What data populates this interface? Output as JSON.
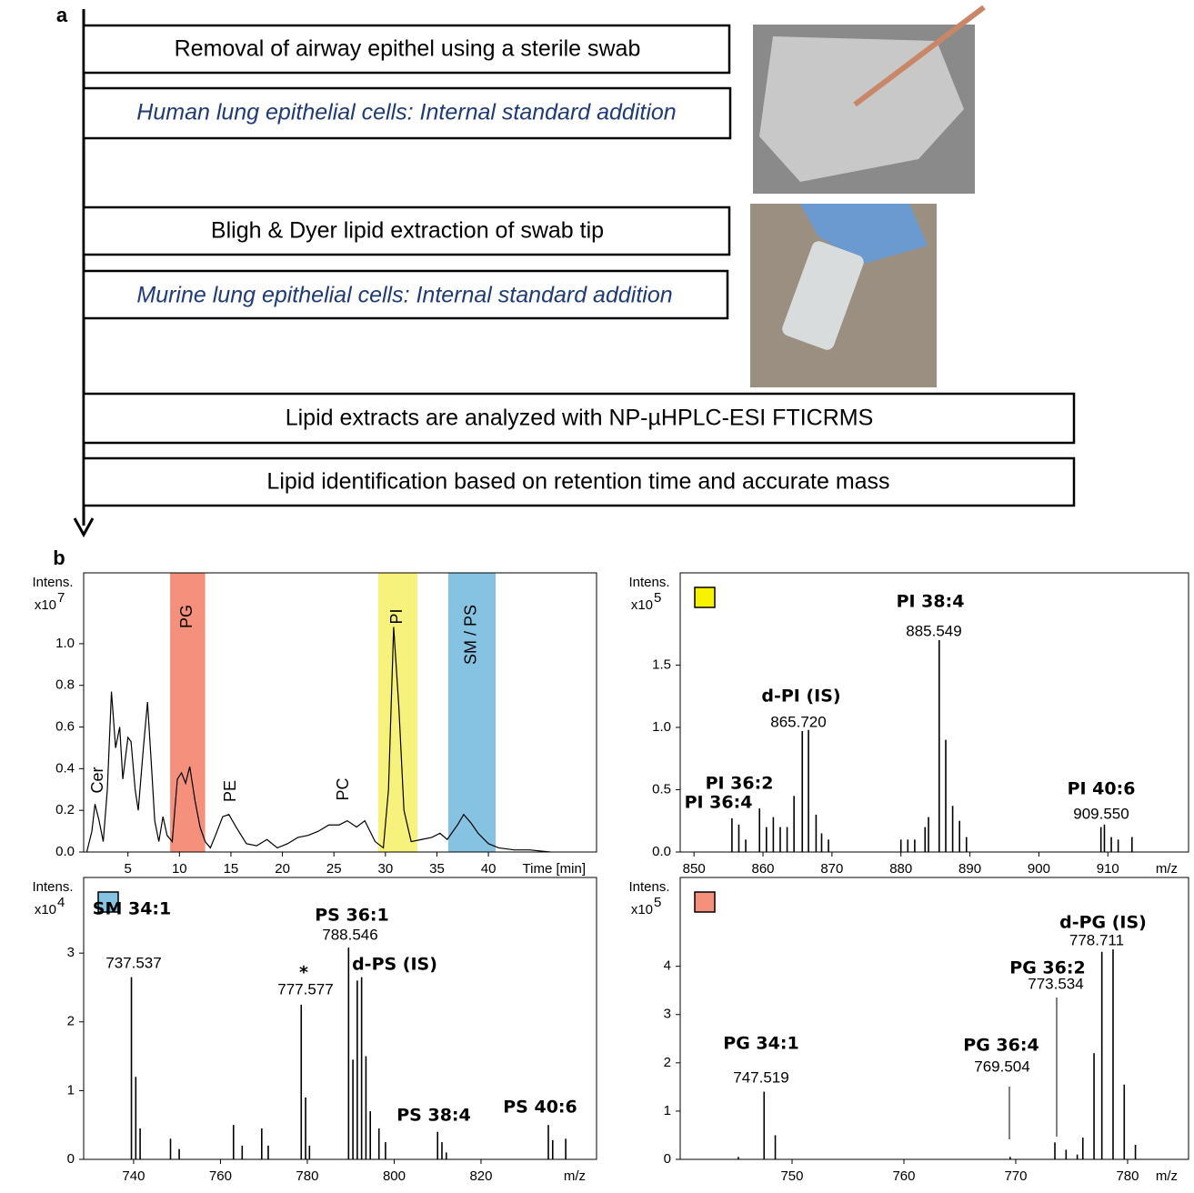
{
  "panel_a": {
    "label": "a",
    "steps": [
      "Removal of airway epithel using a sterile swab",
      "Human lung epithelial cells: Internal standard addition",
      "Bligh & Dyer lipid extraction of swab tip",
      "Murine lung epithelial cells: Internal standard addition",
      "Lipid extracts are  analyzed with NP-µHPLC-ESI FTICRMS",
      "Lipid identification based on retention time and accurate mass"
    ]
  },
  "panel_b": {
    "label": "b"
  },
  "chart_data": [
    {
      "type": "line",
      "ylabel": "Intens.",
      "y_scale_base": "x10",
      "y_scale_exponent": "7",
      "xlabel": "Time [min]",
      "color": "#000000",
      "xlim": [
        0.7,
        50.5
      ],
      "xticks": [
        5,
        10,
        15,
        20,
        25,
        30,
        35,
        40
      ],
      "ylim": [
        0,
        1.34
      ],
      "yticks": [
        {
          "value": 0,
          "label": "0.0"
        },
        {
          "value": 0.2,
          "label": "0.2"
        },
        {
          "value": 0.4,
          "label": "0.4"
        },
        {
          "value": 0.6,
          "label": "0.6"
        },
        {
          "value": 0.8,
          "label": "0.8"
        },
        {
          "value": 1,
          "label": "1.0"
        }
      ],
      "bands": [
        {
          "label": "PG",
          "range": [
            9.1,
            12.5
          ],
          "color": "#f4907c"
        },
        {
          "label": "PI",
          "range": [
            29.3,
            33.1
          ],
          "color": "#f7f27c"
        },
        {
          "label": "SM / PS",
          "range": [
            36.1,
            40.7
          ],
          "color": "#86c2e2"
        }
      ],
      "annotations": [
        {
          "name": "Cer"
        },
        {
          "name": "PE"
        },
        {
          "name": "PC"
        }
      ],
      "x": [
        1.0,
        1.5,
        1.8,
        2.2,
        2.6,
        3.0,
        3.4,
        3.8,
        4.2,
        4.5,
        5.0,
        5.3,
        5.7,
        6.0,
        6.5,
        6.9,
        7.3,
        7.6,
        8.0,
        8.4,
        8.8,
        9.3,
        9.8,
        10.2,
        10.6,
        11.0,
        11.5,
        12.0,
        12.5,
        13.0,
        13.5,
        14.2,
        14.8,
        15.5,
        16.5,
        17.5,
        18.5,
        19.5,
        20.5,
        21.5,
        22.5,
        23.5,
        24.5,
        25.5,
        26.3,
        27.2,
        28.0,
        29.0,
        29.8,
        30.3,
        30.8,
        31.3,
        31.8,
        32.5,
        33.5,
        34.5,
        35.3,
        36.0,
        37.0,
        37.6,
        38.3,
        39.0,
        40.0,
        41.0,
        42.5,
        44.0,
        46.0
      ],
      "values": [
        0.0,
        0.1,
        0.23,
        0.15,
        0.05,
        0.3,
        0.77,
        0.5,
        0.6,
        0.35,
        0.55,
        0.53,
        0.3,
        0.2,
        0.5,
        0.72,
        0.4,
        0.15,
        0.05,
        0.17,
        0.08,
        0.05,
        0.35,
        0.38,
        0.33,
        0.41,
        0.25,
        0.12,
        0.05,
        0.02,
        0.08,
        0.17,
        0.18,
        0.12,
        0.04,
        0.03,
        0.06,
        0.02,
        0.04,
        0.07,
        0.08,
        0.1,
        0.13,
        0.13,
        0.15,
        0.12,
        0.15,
        0.05,
        0.02,
        0.3,
        1.08,
        0.7,
        0.2,
        0.05,
        0.06,
        0.07,
        0.09,
        0.06,
        0.13,
        0.18,
        0.14,
        0.09,
        0.04,
        0.02,
        0.01,
        0.01,
        0.0
      ]
    },
    {
      "type": "spectrum",
      "ylabel": "Intens.",
      "y_scale_base": "x10",
      "y_scale_exponent": "5",
      "xlabel": "m/z",
      "color": "#000000",
      "marker_color": "#f7f200",
      "xlim": [
        848.0,
        921.7
      ],
      "xticks": [
        850,
        860,
        870,
        880,
        890,
        900,
        910
      ],
      "ylim": [
        0,
        2.24
      ],
      "yticks": [
        {
          "value": 0,
          "label": "0.0"
        },
        {
          "value": 0.5,
          "label": "0.5"
        },
        {
          "value": 1,
          "label": "1.0"
        },
        {
          "value": 1.5,
          "label": "1.5"
        }
      ],
      "annotations": [
        {
          "name": "PI  38:4",
          "mz": "885.549"
        },
        {
          "name": "d-PI (IS)",
          "mz": "865.720"
        },
        {
          "name": "PI  36:2"
        },
        {
          "name": "PI  36:4"
        },
        {
          "name": "PI  40:6",
          "mz": "909.550"
        }
      ],
      "x": [
        855.5,
        856.5,
        857.5,
        859.5,
        860.5,
        861.5,
        862.5,
        863.5,
        864.5,
        865.7,
        866.6,
        867.7,
        868.5,
        869.5,
        880,
        881,
        882,
        883.5,
        884,
        885.55,
        886.5,
        887.5,
        888.5,
        889.5,
        909,
        909.5,
        910.5,
        911.5,
        913.5
      ],
      "values": [
        0.27,
        0.22,
        0.1,
        0.35,
        0.2,
        0.28,
        0.2,
        0.2,
        0.45,
        0.97,
        0.98,
        0.3,
        0.15,
        0.1,
        0.1,
        0.1,
        0.1,
        0.2,
        0.28,
        1.7,
        0.9,
        0.37,
        0.25,
        0.12,
        0.2,
        0.22,
        0.12,
        0.1,
        0.12
      ]
    },
    {
      "type": "spectrum",
      "ylabel": "Intens.",
      "y_scale_base": "x10",
      "y_scale_exponent": "4",
      "xlabel": "m/z",
      "color": "#000000",
      "marker_color": "#86c2e2",
      "xlim": [
        728.5,
        846.6
      ],
      "xticks": [
        740,
        760,
        780,
        800,
        820
      ],
      "ylim": [
        0,
        4.1
      ],
      "yticks": [
        0,
        1,
        2,
        3
      ],
      "annotations": [
        {
          "name": "SM  34:1",
          "mz": "737.537"
        },
        {
          "name": "*",
          "mz": "777.577"
        },
        {
          "name": "PS  36:1",
          "mz": "788.546"
        },
        {
          "name": "d-PS  (IS)"
        },
        {
          "name": "PS  38:4"
        },
        {
          "name": "PS  40:6"
        }
      ],
      "x": [
        739.5,
        740.5,
        741.5,
        748.5,
        750.5,
        763,
        765,
        769.5,
        771,
        778.6,
        779.6,
        780.5,
        789.5,
        790.5,
        791.5,
        792.5,
        793.5,
        794.5,
        796.5,
        798,
        810,
        811,
        812,
        835.5,
        836.5,
        839.5
      ],
      "values": [
        2.65,
        1.2,
        0.45,
        0.3,
        0.15,
        0.5,
        0.2,
        0.45,
        0.2,
        2.25,
        0.9,
        0.2,
        3.08,
        1.45,
        2.6,
        2.65,
        1.5,
        0.7,
        0.45,
        0.25,
        0.4,
        0.25,
        0.1,
        0.5,
        0.28,
        0.3
      ]
    },
    {
      "type": "spectrum",
      "ylabel": "Intens.",
      "y_scale_base": "x10",
      "y_scale_exponent": "5",
      "xlabel": "m/z",
      "color": "#000000",
      "marker_color": "#f4907c",
      "xlim": [
        740.0,
        785.45
      ],
      "xticks": [
        750,
        760,
        770,
        780
      ],
      "ylim": [
        0,
        5.84
      ],
      "yticks": [
        0,
        1,
        2,
        3,
        4
      ],
      "annotations": [
        {
          "name": "PG  34:1",
          "mz": "747.519"
        },
        {
          "name": "PG  36:4",
          "mz": "769.504"
        },
        {
          "name": "PG  36:2",
          "mz": "773.534"
        },
        {
          "name": "d-PG (IS)",
          "mz": "778.711"
        }
      ],
      "x": [
        745.2,
        747.5,
        748.5,
        769.5,
        773.5,
        774.5,
        775.5,
        776,
        777,
        777.7,
        778.7,
        779.7,
        780.7
      ],
      "values": [
        0.05,
        1.4,
        0.5,
        0.05,
        0.35,
        0.2,
        0.1,
        0.45,
        2.2,
        4.3,
        4.35,
        1.55,
        0.3
      ]
    }
  ]
}
